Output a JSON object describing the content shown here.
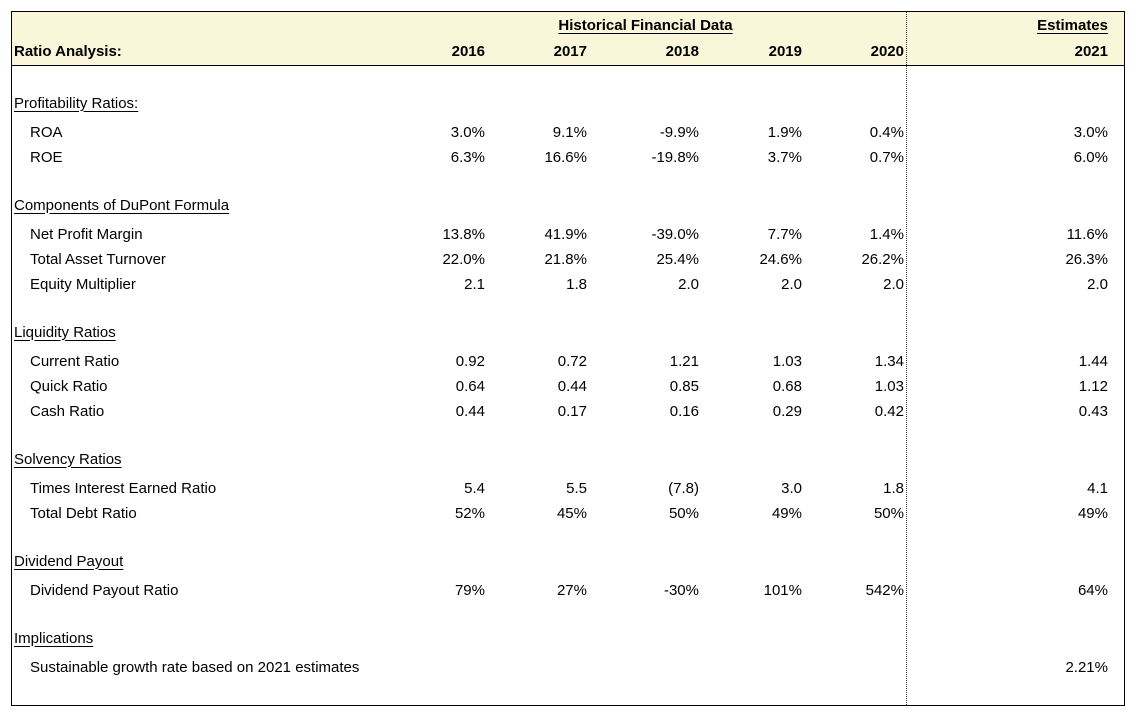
{
  "header": {
    "group_title": "Historical Financial Data",
    "estimates_title": "Estimates",
    "row_label": "Ratio Analysis:",
    "years": [
      "2016",
      "2017",
      "2018",
      "2019",
      "2020"
    ],
    "estimate_year": "2021"
  },
  "colors": {
    "header_bg": "#FAF6D9",
    "border": "#000000",
    "divider": "#444444",
    "text": "#000000"
  },
  "sections": [
    {
      "heading": "Profitability Ratios:",
      "rows": [
        {
          "label": "ROA",
          "values": [
            "3.0%",
            "9.1%",
            "-9.9%",
            "1.9%",
            "0.4%",
            "3.0%"
          ]
        },
        {
          "label": "ROE",
          "values": [
            "6.3%",
            "16.6%",
            "-19.8%",
            "3.7%",
            "0.7%",
            "6.0%"
          ]
        }
      ]
    },
    {
      "heading": "Components of DuPont Formula",
      "rows": [
        {
          "label": "Net Profit Margin",
          "values": [
            "13.8%",
            "41.9%",
            "-39.0%",
            "7.7%",
            "1.4%",
            "11.6%"
          ]
        },
        {
          "label": "Total Asset Turnover",
          "values": [
            "22.0%",
            "21.8%",
            "25.4%",
            "24.6%",
            "26.2%",
            "26.3%"
          ]
        },
        {
          "label": "Equity Multiplier",
          "values": [
            "2.1",
            "1.8",
            "2.0",
            "2.0",
            "2.0",
            "2.0"
          ]
        }
      ]
    },
    {
      "heading": "Liquidity Ratios",
      "rows": [
        {
          "label": "Current Ratio",
          "values": [
            "0.92",
            "0.72",
            "1.21",
            "1.03",
            "1.34",
            "1.44"
          ]
        },
        {
          "label": "Quick Ratio",
          "values": [
            "0.64",
            "0.44",
            "0.85",
            "0.68",
            "1.03",
            "1.12"
          ]
        },
        {
          "label": "Cash Ratio",
          "values": [
            "0.44",
            "0.17",
            "0.16",
            "0.29",
            "0.42",
            "0.43"
          ]
        }
      ]
    },
    {
      "heading": "Solvency Ratios",
      "rows": [
        {
          "label": "Times Interest Earned Ratio",
          "values": [
            "5.4",
            "5.5",
            "(7.8)",
            "3.0",
            "1.8",
            "4.1"
          ]
        },
        {
          "label": "Total Debt Ratio",
          "values": [
            "52%",
            "45%",
            "50%",
            "49%",
            "50%",
            "49%"
          ]
        }
      ]
    },
    {
      "heading": "Dividend Payout",
      "rows": [
        {
          "label": "Dividend Payout Ratio",
          "values": [
            "79%",
            "27%",
            "-30%",
            "101%",
            "542%",
            "64%"
          ]
        }
      ]
    },
    {
      "heading": "Implications",
      "rows": [
        {
          "label": "Sustainable growth rate based on 2021 estimates",
          "values": [
            "",
            "",
            "",
            "",
            "",
            "2.21%"
          ]
        }
      ]
    }
  ]
}
